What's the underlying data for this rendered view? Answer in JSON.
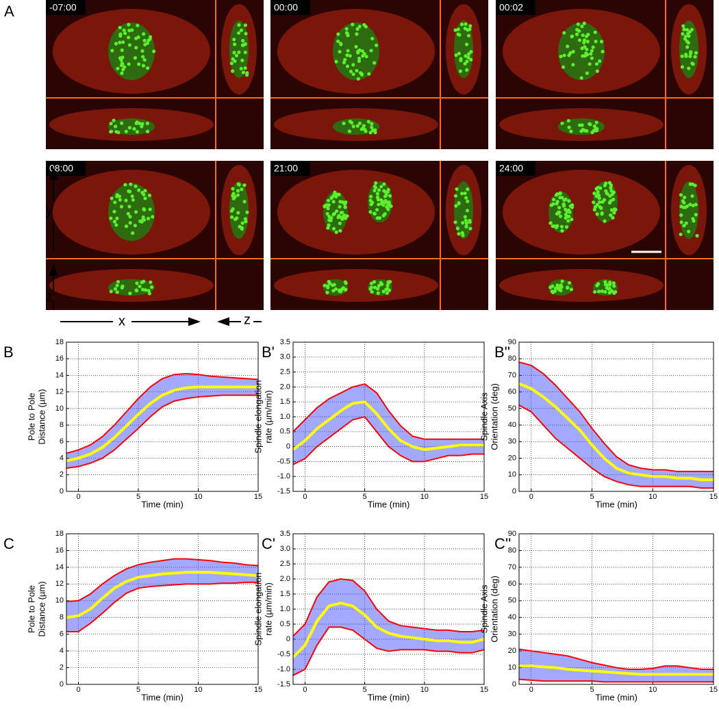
{
  "panel_a": {
    "label": "A",
    "frames": [
      "-07:00",
      "00:00",
      "00:02",
      "08:00",
      "21:00",
      "24:00"
    ],
    "axis_labels": [
      "y",
      "z",
      "x",
      "z"
    ]
  },
  "chart_data": [
    {
      "type": "line",
      "panel": "B",
      "ylabel": [
        "Pole to Pole",
        "Distance (µm)"
      ],
      "xlabel": "Time (min)",
      "x": [
        -1,
        0,
        1,
        2,
        3,
        4,
        5,
        6,
        7,
        8,
        9,
        10,
        11,
        12,
        13,
        14,
        15
      ],
      "xlim": [
        -1,
        15
      ],
      "xticks": [
        0,
        5,
        10,
        15
      ],
      "ylim": [
        0,
        18
      ],
      "yticks": [
        0,
        2,
        4,
        6,
        8,
        10,
        12,
        14,
        16,
        18
      ],
      "grid": true,
      "series": [
        {
          "color": "#ffff00",
          "values": [
            3.7,
            4.0,
            4.5,
            5.3,
            6.5,
            7.9,
            9.3,
            10.6,
            11.6,
            12.2,
            12.5,
            12.6,
            12.6,
            12.6,
            12.6,
            12.6,
            12.6
          ]
        },
        {
          "color": "#ff0000",
          "values": [
            4.6,
            5.0,
            5.6,
            6.6,
            8.0,
            9.6,
            11.2,
            12.6,
            13.6,
            14.1,
            14.2,
            14.1,
            13.9,
            13.8,
            13.7,
            13.6,
            13.5
          ]
        },
        {
          "color": "#ff0000",
          "values": [
            2.8,
            3.0,
            3.4,
            4.0,
            5.0,
            6.3,
            7.6,
            9.0,
            10.2,
            10.9,
            11.2,
            11.4,
            11.5,
            11.6,
            11.6,
            11.6,
            11.6
          ]
        }
      ]
    },
    {
      "type": "line",
      "panel": "B'",
      "ylabel": [
        "Spindle elongation",
        "rate (µm/min)"
      ],
      "xlabel": "Time (min)",
      "x": [
        -1,
        0,
        1,
        2,
        3,
        4,
        5,
        6,
        7,
        8,
        9,
        10,
        11,
        12,
        13,
        14,
        15
      ],
      "xlim": [
        -1,
        15
      ],
      "xticks": [
        0,
        5,
        10,
        15
      ],
      "ylim": [
        -1.5,
        3.5
      ],
      "yticks": [
        -1.5,
        {
          "value": -1,
          "label": "-1.0"
        },
        -0.5,
        0,
        0.5,
        {
          "value": 1,
          "label": "1.0"
        },
        1.5,
        {
          "value": 2,
          "label": "2.0"
        },
        2.5,
        {
          "value": 3,
          "label": "3.0"
        },
        3.5
      ],
      "grid": true,
      "series": [
        {
          "color": "#ffff00",
          "values": [
            -0.1,
            0.2,
            0.6,
            0.9,
            1.2,
            1.45,
            1.5,
            1.1,
            0.6,
            0.2,
            0.0,
            -0.1,
            -0.05,
            0.0,
            0.05,
            0.05,
            0.05
          ]
        },
        {
          "color": "#ff0000",
          "values": [
            0.5,
            0.9,
            1.3,
            1.6,
            1.8,
            2.0,
            2.1,
            1.8,
            1.2,
            0.7,
            0.35,
            0.25,
            0.25,
            0.25,
            0.25,
            0.25,
            0.25
          ]
        },
        {
          "color": "#ff0000",
          "values": [
            -0.6,
            -0.4,
            0.0,
            0.3,
            0.6,
            0.9,
            1.0,
            0.5,
            0.0,
            -0.3,
            -0.5,
            -0.5,
            -0.4,
            -0.3,
            -0.3,
            -0.25,
            -0.25
          ]
        }
      ]
    },
    {
      "type": "line",
      "panel": "B''",
      "ylabel": [
        "Spindle Axis",
        "Orientation (deg)"
      ],
      "xlabel": "Time (min)",
      "x": [
        -1,
        0,
        1,
        2,
        3,
        4,
        5,
        6,
        7,
        8,
        9,
        10,
        11,
        12,
        13,
        14,
        15
      ],
      "xlim": [
        -1,
        15
      ],
      "xticks": [
        0,
        5,
        10,
        15
      ],
      "ylim": [
        0,
        90
      ],
      "yticks": [
        0,
        10,
        20,
        30,
        40,
        50,
        60,
        70,
        80,
        90
      ],
      "grid": true,
      "series": [
        {
          "color": "#ffff00",
          "values": [
            65,
            62,
            57,
            51,
            44,
            37,
            28,
            20,
            14,
            11,
            10,
            9,
            9,
            8,
            8,
            7,
            7
          ]
        },
        {
          "color": "#ff0000",
          "values": [
            78,
            76,
            71,
            64,
            56,
            48,
            38,
            29,
            21,
            16,
            14,
            13,
            13,
            12,
            12,
            12,
            12
          ]
        },
        {
          "color": "#ff0000",
          "values": [
            52,
            48,
            40,
            32,
            26,
            20,
            14,
            9,
            6,
            4,
            3,
            3,
            3,
            3,
            3,
            2,
            2
          ]
        }
      ]
    },
    {
      "type": "line",
      "panel": "C",
      "ylabel": [
        "Pole to Pole",
        "Distance (µm)"
      ],
      "xlabel": "Time (min)",
      "x": [
        -1,
        0,
        1,
        2,
        3,
        4,
        5,
        6,
        7,
        8,
        9,
        10,
        11,
        12,
        13,
        14,
        15
      ],
      "xlim": [
        -1,
        15
      ],
      "xticks": [
        0,
        5,
        10,
        15
      ],
      "ylim": [
        0,
        18
      ],
      "yticks": [
        0,
        2,
        4,
        6,
        8,
        10,
        12,
        14,
        16,
        18
      ],
      "grid": true,
      "series": [
        {
          "color": "#ffff00",
          "values": [
            8.0,
            8.2,
            9.0,
            10.3,
            11.5,
            12.3,
            12.8,
            13.0,
            13.2,
            13.3,
            13.4,
            13.4,
            13.4,
            13.3,
            13.2,
            13.1,
            13.0
          ]
        },
        {
          "color": "#ff0000",
          "values": [
            9.9,
            10.0,
            10.8,
            12.0,
            13.0,
            13.8,
            14.3,
            14.6,
            14.8,
            15.0,
            15.0,
            14.9,
            14.8,
            14.6,
            14.5,
            14.3,
            14.2
          ]
        },
        {
          "color": "#ff0000",
          "values": [
            6.3,
            6.3,
            7.3,
            8.5,
            9.8,
            10.9,
            11.5,
            11.7,
            11.8,
            11.9,
            12.0,
            12.0,
            12.0,
            12.1,
            12.1,
            12.2,
            12.2
          ]
        }
      ]
    },
    {
      "type": "line",
      "panel": "C'",
      "ylabel": [
        "Spindle elongation",
        "rate (µm/min)"
      ],
      "xlabel": "Time (min)",
      "x": [
        -1,
        0,
        1,
        2,
        3,
        4,
        5,
        6,
        7,
        8,
        9,
        10,
        11,
        12,
        13,
        14,
        15
      ],
      "xlim": [
        -1,
        15
      ],
      "xticks": [
        0,
        5,
        10,
        15
      ],
      "ylim": [
        -1.5,
        3.5
      ],
      "yticks": [
        -1.5,
        {
          "value": -1,
          "label": "-1.0"
        },
        -0.5,
        0,
        0.5,
        {
          "value": 1,
          "label": "1.0"
        },
        1.5,
        {
          "value": 2,
          "label": "2.0"
        },
        2.5,
        {
          "value": 3,
          "label": "3.0"
        },
        3.5
      ],
      "grid": true,
      "series": [
        {
          "color": "#ffff00",
          "values": [
            -0.6,
            -0.2,
            0.6,
            1.1,
            1.2,
            1.1,
            0.8,
            0.4,
            0.2,
            0.1,
            0.05,
            0.0,
            -0.05,
            -0.05,
            -0.1,
            -0.1,
            0.0
          ]
        },
        {
          "color": "#ff0000",
          "values": [
            0.1,
            0.5,
            1.4,
            1.9,
            2.0,
            1.95,
            1.6,
            1.0,
            0.6,
            0.45,
            0.4,
            0.35,
            0.3,
            0.3,
            0.25,
            0.25,
            0.3
          ]
        },
        {
          "color": "#ff0000",
          "values": [
            -1.2,
            -1.0,
            -0.2,
            0.4,
            0.4,
            0.3,
            0.0,
            -0.3,
            -0.4,
            -0.35,
            -0.35,
            -0.35,
            -0.4,
            -0.4,
            -0.45,
            -0.45,
            -0.35
          ]
        }
      ]
    },
    {
      "type": "line",
      "panel": "C''",
      "ylabel": [
        "Spindle Axis",
        "Orientation (deg)"
      ],
      "xlabel": "Time (min)",
      "x": [
        -1,
        0,
        1,
        2,
        3,
        4,
        5,
        6,
        7,
        8,
        9,
        10,
        11,
        12,
        13,
        14,
        15
      ],
      "xlim": [
        -1,
        15
      ],
      "xticks": [
        0,
        5,
        10,
        15
      ],
      "ylim": [
        0,
        90
      ],
      "yticks": [
        0,
        10,
        20,
        30,
        40,
        50,
        60,
        70,
        80,
        90
      ],
      "grid": true,
      "series": [
        {
          "color": "#ffff00",
          "values": [
            11,
            11,
            10.5,
            10,
            9,
            8.5,
            8,
            7.5,
            7,
            6.5,
            6,
            6,
            6,
            6,
            6,
            6,
            6
          ]
        },
        {
          "color": "#ff0000",
          "values": [
            21,
            20,
            19,
            18,
            17,
            15,
            13,
            11.5,
            10,
            9,
            9,
            9.5,
            11,
            11,
            10,
            9,
            9
          ]
        },
        {
          "color": "#ff0000",
          "values": [
            3,
            2.5,
            2,
            2,
            2,
            2,
            2,
            1.5,
            1.5,
            1.5,
            1.5,
            1.5,
            1.5,
            1.5,
            1.5,
            1.5,
            1.5
          ]
        }
      ]
    }
  ]
}
